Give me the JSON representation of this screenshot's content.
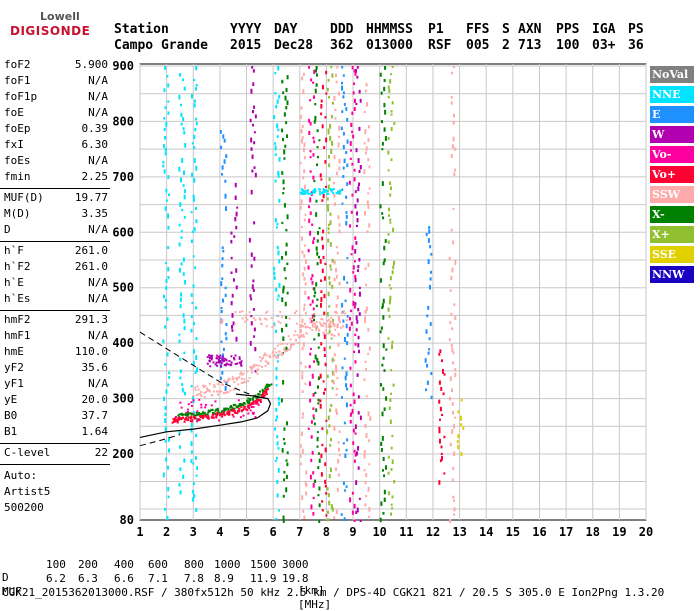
{
  "logo": {
    "top": "Lowell",
    "main": "DIGISONDE"
  },
  "header": {
    "row1": [
      "Station",
      "YYYY",
      "DAY",
      "DDD",
      "HHMMSS",
      "P1",
      "FFS",
      "S",
      "AXN",
      "PPS",
      "IGA",
      "PS"
    ],
    "row2": [
      "Campo Grande",
      "2015",
      "Dec28",
      "362",
      "013000",
      "RSF",
      "005",
      "2",
      "713",
      "100",
      "03+",
      "36"
    ]
  },
  "params": {
    "group1": [
      {
        "label": "foF2",
        "value": "5.900"
      },
      {
        "label": "foF1",
        "value": "N/A"
      },
      {
        "label": "foF1p",
        "value": "N/A"
      },
      {
        "label": "foE",
        "value": "N/A"
      },
      {
        "label": "foEp",
        "value": "0.39"
      },
      {
        "label": "fxI",
        "value": "6.30"
      },
      {
        "label": "foEs",
        "value": "N/A"
      },
      {
        "label": "fmin",
        "value": "2.25"
      }
    ],
    "group2": [
      {
        "label": "MUF(D)",
        "value": "19.77"
      },
      {
        "label": "M(D)",
        "value": "3.35"
      },
      {
        "label": "D",
        "value": "N/A"
      }
    ],
    "group3": [
      {
        "label": "h`F",
        "value": "261.0"
      },
      {
        "label": "h`F2",
        "value": "261.0"
      },
      {
        "label": "h`E",
        "value": "N/A"
      },
      {
        "label": "h`Es",
        "value": "N/A"
      }
    ],
    "group4": [
      {
        "label": "hmF2",
        "value": "291.3"
      },
      {
        "label": "hmF1",
        "value": "N/A"
      },
      {
        "label": "hmE",
        "value": "110.0"
      },
      {
        "label": "yF2",
        "value": "35.6"
      },
      {
        "label": "yF1",
        "value": "N/A"
      },
      {
        "label": "yE",
        "value": "20.0"
      },
      {
        "label": "B0",
        "value": "37.7"
      },
      {
        "label": "B1",
        "value": "1.64"
      }
    ],
    "clevel": {
      "label": "C-level",
      "value": "22"
    },
    "auto": [
      "Auto:",
      "Artist5",
      "500200"
    ]
  },
  "legend": [
    {
      "label": "NoVal",
      "color": "#808080"
    },
    {
      "label": "NNE",
      "color": "#00e5ff"
    },
    {
      "label": "E",
      "color": "#1e90ff"
    },
    {
      "label": "W",
      "color": "#b000b0"
    },
    {
      "label": "Vo-",
      "color": "#ff00a0"
    },
    {
      "label": "Vo+",
      "color": "#ff0033"
    },
    {
      "label": "SSW",
      "color": "#ffaaaa"
    },
    {
      "label": "X-",
      "color": "#008000"
    },
    {
      "label": "X+",
      "color": "#90c030"
    },
    {
      "label": "SSE",
      "color": "#e0d000"
    },
    {
      "label": "NNW",
      "color": "#1a00c0"
    }
  ],
  "footer": {
    "d_label": "D",
    "d_values": [
      "100",
      "200",
      "400",
      "600",
      "800",
      "1000",
      "1500",
      "3000"
    ],
    "d_unit": "[km]",
    "muf_label": "MUF",
    "muf_values": [
      "6.2",
      "6.3",
      "6.6",
      "7.1",
      "7.8",
      "8.9",
      "11.9",
      "19.8"
    ],
    "muf_unit": "[MHz]",
    "info": "CGK21_2015362013000.RSF / 380fx512h 50 kHz 2.5 km / DPS-4D CGK21 821 / 20.5 S 305.0 E Ion2Png 1.3.20"
  },
  "chart_data": {
    "type": "scatter",
    "title": "",
    "xlabel": "",
    "ylabel": "",
    "xlim": [
      1,
      20
    ],
    "ylim": [
      80,
      900
    ],
    "x_ticks": [
      "1",
      "2",
      "3",
      "4",
      "5",
      "6",
      "7",
      "8",
      "9",
      "10",
      "11",
      "12",
      "13",
      "14",
      "15",
      "16",
      "17",
      "18",
      "19",
      "20"
    ],
    "y_ticks": [
      "80",
      "200",
      "300",
      "400",
      "500",
      "600",
      "700",
      "800",
      "900"
    ],
    "grid": true,
    "legend_placement": "right",
    "profile_curve": {
      "name": "electron density profile",
      "points": [
        [
          1.0,
          230
        ],
        [
          2.0,
          240
        ],
        [
          3.0,
          245
        ],
        [
          4.0,
          252
        ],
        [
          4.8,
          258
        ],
        [
          5.4,
          265
        ],
        [
          5.8,
          278
        ],
        [
          5.9,
          291
        ],
        [
          5.8,
          300
        ],
        [
          5.2,
          305
        ],
        [
          4.6,
          308
        ]
      ]
    },
    "extrapolated_top": {
      "points": [
        [
          1.0,
          420
        ],
        [
          2.0,
          390
        ],
        [
          3.0,
          360
        ],
        [
          4.0,
          330
        ],
        [
          5.0,
          310
        ],
        [
          5.6,
          300
        ]
      ]
    },
    "extrapolated_bottom": {
      "points": [
        [
          1.0,
          215
        ],
        [
          1.8,
          225
        ],
        [
          2.5,
          235
        ]
      ]
    },
    "trace_o_mode": {
      "name": "Vo+",
      "points": [
        [
          2.2,
          262
        ],
        [
          2.5,
          263
        ],
        [
          3.0,
          265
        ],
        [
          3.5,
          268
        ],
        [
          4.0,
          272
        ],
        [
          4.5,
          278
        ],
        [
          5.0,
          286
        ],
        [
          5.5,
          300
        ],
        [
          5.8,
          318
        ]
      ]
    },
    "trace_x_mode": {
      "name": "X-",
      "points": [
        [
          2.4,
          270
        ],
        [
          3.0,
          272
        ],
        [
          3.5,
          276
        ],
        [
          4.0,
          280
        ],
        [
          4.5,
          287
        ],
        [
          5.0,
          296
        ],
        [
          5.5,
          310
        ],
        [
          5.9,
          330
        ]
      ]
    },
    "trace_ssw": {
      "name": "SSW",
      "points": [
        [
          3.0,
          312
        ],
        [
          3.5,
          315
        ],
        [
          4.0,
          320
        ],
        [
          4.5,
          330
        ],
        [
          5.0,
          345
        ],
        [
          5.5,
          365
        ],
        [
          6.0,
          380
        ],
        [
          6.5,
          400
        ],
        [
          7.0,
          420
        ],
        [
          7.5,
          440
        ],
        [
          8.0,
          430
        ],
        [
          8.5,
          425
        ]
      ]
    },
    "vertical_bands": [
      {
        "x": 1.95,
        "color": "#00e5ff",
        "from": 80,
        "to": 900
      },
      {
        "x": 3.0,
        "color": "#00e5ff",
        "from": 80,
        "to": 900
      },
      {
        "x": 2.55,
        "color": "#00e5ff",
        "from": 120,
        "to": 900
      },
      {
        "x": 6.1,
        "color": "#00e5ff",
        "from": 80,
        "to": 900
      },
      {
        "x": 6.4,
        "color": "#008000",
        "from": 80,
        "to": 900
      },
      {
        "x": 7.1,
        "color": "#ffaaaa",
        "from": 80,
        "to": 900
      },
      {
        "x": 7.4,
        "color": "#ff00a0",
        "from": 80,
        "to": 900
      },
      {
        "x": 7.6,
        "color": "#008000",
        "from": 80,
        "to": 900
      },
      {
        "x": 7.85,
        "color": "#ff0033",
        "from": 80,
        "to": 900
      },
      {
        "x": 8.1,
        "color": "#90c030",
        "from": 80,
        "to": 900
      },
      {
        "x": 8.35,
        "color": "#ffaaaa",
        "from": 80,
        "to": 900
      },
      {
        "x": 8.65,
        "color": "#1e90ff",
        "from": 80,
        "to": 900
      },
      {
        "x": 8.95,
        "color": "#ff00a0",
        "from": 80,
        "to": 900
      },
      {
        "x": 9.15,
        "color": "#b000b0",
        "from": 80,
        "to": 900
      },
      {
        "x": 9.5,
        "color": "#ffaaaa",
        "from": 80,
        "to": 900
      },
      {
        "x": 10.1,
        "color": "#008000",
        "from": 80,
        "to": 900
      },
      {
        "x": 10.4,
        "color": "#90c030",
        "from": 80,
        "to": 900
      },
      {
        "x": 11.8,
        "color": "#1e90ff",
        "from": 300,
        "to": 620
      },
      {
        "x": 12.3,
        "color": "#ff0033",
        "from": 150,
        "to": 400
      },
      {
        "x": 12.7,
        "color": "#ffaaaa",
        "from": 80,
        "to": 900
      },
      {
        "x": 13.0,
        "color": "#e0d000",
        "from": 200,
        "to": 300
      },
      {
        "x": 5.2,
        "color": "#b000b0",
        "from": 350,
        "to": 900
      },
      {
        "x": 4.5,
        "color": "#b000b0",
        "from": 380,
        "to": 700
      },
      {
        "x": 4.1,
        "color": "#1e90ff",
        "from": 300,
        "to": 800
      }
    ],
    "clusters": [
      {
        "color": "#b000b0",
        "x": [
          3.5,
          4.8
        ],
        "y": [
          360,
          380
        ]
      },
      {
        "color": "#00e5ff",
        "x": [
          7.0,
          8.5
        ],
        "y": [
          670,
          680
        ]
      },
      {
        "color": "#ffaaaa",
        "x": [
          4.0,
          9.0
        ],
        "y": [
          430,
          460
        ]
      },
      {
        "color": "#ff00a0",
        "x": [
          2.0,
          5.5
        ],
        "y": [
          260,
          300
        ]
      }
    ]
  }
}
